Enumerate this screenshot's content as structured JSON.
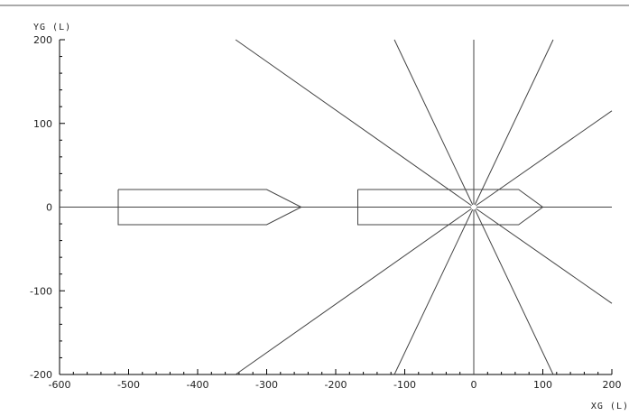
{
  "chart_data": {
    "type": "line",
    "xlabel": "XG (L)",
    "ylabel": "YG (L)",
    "xlim": [
      -600,
      200
    ],
    "ylim": [
      -200,
      200
    ],
    "x_ticks": [
      -600,
      -500,
      -400,
      -300,
      -200,
      -100,
      0,
      100,
      200
    ],
    "y_ticks": [
      -200,
      -100,
      0,
      100,
      200
    ],
    "x_minor_step": 20,
    "y_minor_step": 20,
    "grid": false,
    "colors": {
      "line": "#444444",
      "axis": "#000000",
      "frame": "#222222"
    },
    "rays": [
      {
        "from": [
          0,
          0
        ],
        "to": [
          -345,
          200
        ]
      },
      {
        "from": [
          0,
          0
        ],
        "to": [
          -115,
          200
        ]
      },
      {
        "from": [
          0,
          0
        ],
        "to": [
          115,
          200
        ]
      },
      {
        "from": [
          0,
          0
        ],
        "to": [
          200,
          115
        ]
      },
      {
        "from": [
          0,
          0
        ],
        "to": [
          200,
          -115
        ]
      },
      {
        "from": [
          0,
          0
        ],
        "to": [
          115,
          -200
        ]
      },
      {
        "from": [
          0,
          0
        ],
        "to": [
          -115,
          -200
        ]
      },
      {
        "from": [
          0,
          0
        ],
        "to": [
          -345,
          -200
        ]
      }
    ],
    "reference_lines": [
      {
        "from": [
          -600,
          0
        ],
        "to": [
          200,
          0
        ]
      },
      {
        "from": [
          0,
          -200
        ],
        "to": [
          0,
          200
        ]
      }
    ],
    "ships": [
      {
        "outline": [
          [
            -515,
            21
          ],
          [
            -300,
            21
          ],
          [
            -250,
            0
          ],
          [
            -300,
            -21
          ],
          [
            -515,
            -21
          ],
          [
            -515,
            21
          ]
        ]
      },
      {
        "outline": [
          [
            -168,
            21
          ],
          [
            65,
            21
          ],
          [
            100,
            0
          ],
          [
            65,
            -21
          ],
          [
            -168,
            -21
          ],
          [
            -168,
            21
          ]
        ]
      }
    ]
  }
}
